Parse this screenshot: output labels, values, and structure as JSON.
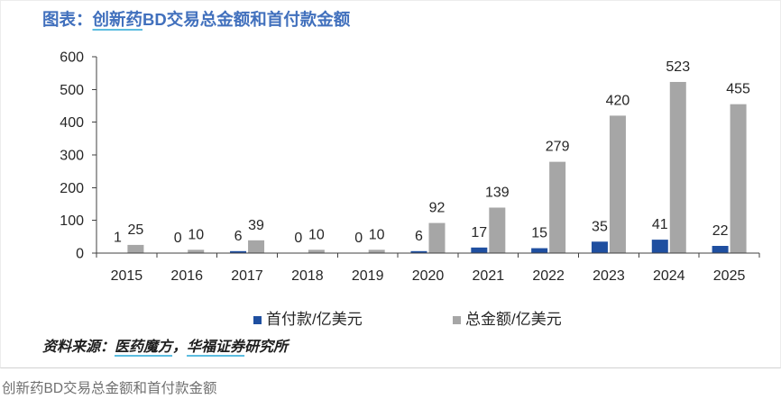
{
  "theme": {
    "title_color": "#4170bd",
    "link_underline_color": "#5cbde0"
  },
  "figure": {
    "source_parts": [
      "资料来源：",
      "医药魔方",
      "，",
      "华福证券",
      "研究所"
    ],
    "caption": "创新药BD交易总金额和首付款金额"
  },
  "chart_data": {
    "type": "bar",
    "title_parts": [
      "图表：",
      "创新药",
      "BD交易总金额和首付款金额"
    ],
    "categories": [
      "2015",
      "2016",
      "2017",
      "2018",
      "2019",
      "2020",
      "2021",
      "2022",
      "2023",
      "2024",
      "2025"
    ],
    "series": [
      {
        "name": "首付款/亿美元",
        "color": "#1f4fa0",
        "values": [
          1,
          0,
          6,
          0,
          0,
          6,
          17,
          15,
          35,
          41,
          22
        ]
      },
      {
        "name": "总金额/亿美元",
        "color": "#a6a6a6",
        "values": [
          25,
          10,
          39,
          10,
          10,
          92,
          139,
          279,
          420,
          523,
          455
        ]
      }
    ],
    "ylim": [
      0,
      600
    ],
    "yticks": [
      0,
      100,
      200,
      300,
      400,
      500,
      600
    ],
    "grid": false,
    "data_labels": true,
    "legend": "bottom"
  }
}
